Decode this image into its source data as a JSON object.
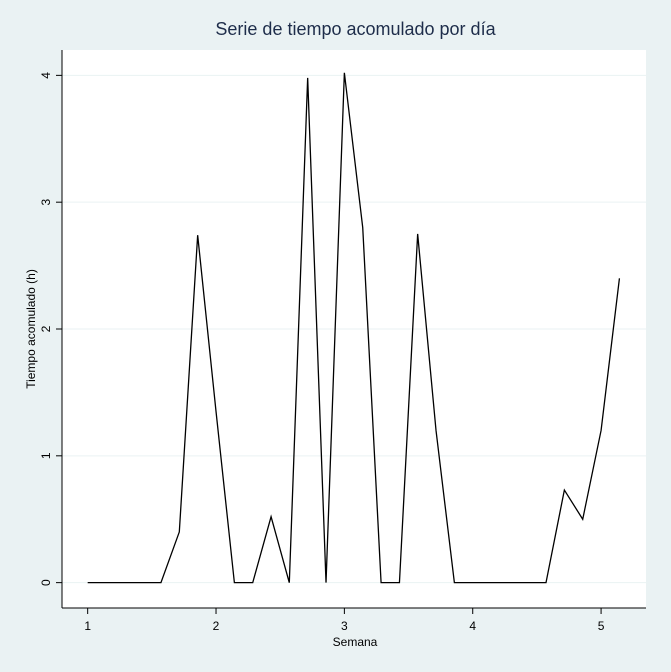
{
  "chart_data": {
    "type": "line",
    "title": "Serie de tiempo acomulado por día",
    "xlabel": "Semana",
    "ylabel": "Tiempo acomulado (h)",
    "xlim": [
      0.8,
      5.35
    ],
    "ylim": [
      -0.2,
      4.2
    ],
    "x_ticks": [
      1,
      2,
      3,
      4,
      5
    ],
    "y_ticks": [
      0,
      1,
      2,
      3,
      4
    ],
    "grid": "horizontal",
    "legend": "none",
    "line_color": "#000000",
    "gridline_color": "#eaf2f3",
    "plot_background": "#ffffff",
    "series": [
      {
        "x": [
          1.0,
          1.143,
          1.286,
          1.429,
          1.571,
          1.714,
          1.857,
          2.0,
          2.143,
          2.286,
          2.429,
          2.571,
          2.714,
          2.857,
          3.0,
          3.143,
          3.286,
          3.429,
          3.571,
          3.714,
          3.857,
          4.0,
          4.143,
          4.286,
          4.429,
          4.571,
          4.714,
          4.857,
          5.0,
          5.143
        ],
        "values": [
          0,
          0,
          0,
          0,
          0,
          0.4,
          2.74,
          1.35,
          0,
          0,
          0.52,
          0,
          3.98,
          0,
          4.02,
          2.8,
          0,
          0,
          2.75,
          1.2,
          0,
          0,
          0,
          0,
          0,
          0,
          0.73,
          0.5,
          1.2,
          2.4
        ]
      }
    ]
  }
}
